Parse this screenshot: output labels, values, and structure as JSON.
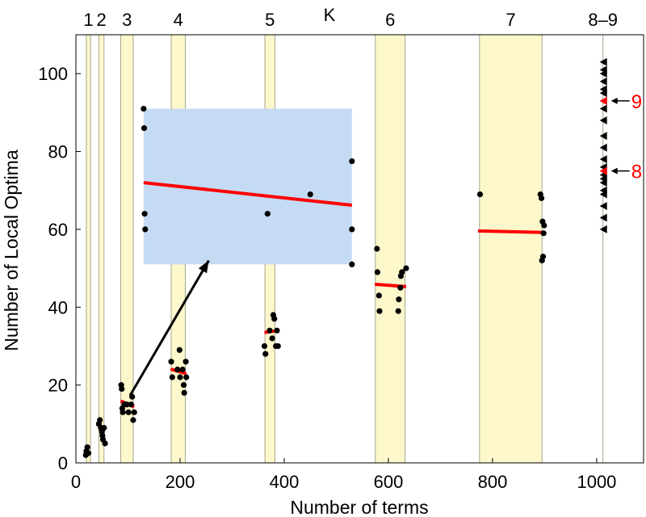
{
  "chart_data": {
    "type": "scatter",
    "xlabel": "Number of terms",
    "ylabel": "Number of Local Optima",
    "top_axis_label": "K",
    "xlim": [
      0,
      1090
    ],
    "ylim": [
      0,
      110
    ],
    "x_ticks": [
      0,
      200,
      400,
      600,
      800,
      1000
    ],
    "y_ticks": [
      0,
      20,
      40,
      60,
      80,
      100
    ],
    "grid": false,
    "colors": {
      "band_fill": "#fcf8cc",
      "band_edge": "#a6a68a",
      "inset_fill": "#c5dbf4",
      "regression": "#ff0000",
      "points": "#000000",
      "highlight": "#ff0000"
    },
    "k_bands": [
      {
        "label": "1",
        "x0": 20,
        "x1": 28
      },
      {
        "label": "2",
        "x0": 44,
        "x1": 54
      },
      {
        "label": "3",
        "x0": 86,
        "x1": 110
      },
      {
        "label": "4",
        "x0": 183,
        "x1": 210
      },
      {
        "label": "5",
        "x0": 363,
        "x1": 382
      },
      {
        "label": "6",
        "x0": 575,
        "x1": 632
      },
      {
        "label": "7",
        "x0": 775,
        "x1": 895
      },
      {
        "label": "8–9",
        "x0": 1012,
        "x1": 1012
      }
    ],
    "points": [
      [
        19,
        2
      ],
      [
        20,
        3
      ],
      [
        22,
        4
      ],
      [
        24,
        2.5
      ],
      [
        44,
        10
      ],
      [
        46,
        11
      ],
      [
        48,
        9
      ],
      [
        50,
        8
      ],
      [
        51,
        7
      ],
      [
        52,
        6
      ],
      [
        54,
        9
      ],
      [
        56,
        5
      ],
      [
        87,
        20
      ],
      [
        88,
        19
      ],
      [
        89,
        14
      ],
      [
        90,
        13
      ],
      [
        93,
        15
      ],
      [
        98,
        15
      ],
      [
        101,
        13
      ],
      [
        106,
        15
      ],
      [
        108,
        17
      ],
      [
        110,
        11
      ],
      [
        112,
        13
      ],
      [
        183,
        26
      ],
      [
        185,
        22
      ],
      [
        195,
        24
      ],
      [
        199,
        29
      ],
      [
        200,
        22
      ],
      [
        205,
        24
      ],
      [
        207,
        20
      ],
      [
        208,
        18
      ],
      [
        211,
        26
      ],
      [
        212,
        22
      ],
      [
        362,
        30
      ],
      [
        364,
        28
      ],
      [
        372,
        34
      ],
      [
        377,
        32
      ],
      [
        379,
        38
      ],
      [
        381,
        37
      ],
      [
        384,
        30
      ],
      [
        386,
        34
      ],
      [
        388,
        30
      ],
      [
        578,
        55
      ],
      [
        579,
        49
      ],
      [
        582,
        43
      ],
      [
        583,
        39
      ],
      [
        619,
        39
      ],
      [
        620,
        42
      ],
      [
        624,
        48
      ],
      [
        626,
        49
      ],
      [
        634,
        50
      ],
      [
        623,
        45
      ],
      [
        776,
        69
      ],
      [
        892,
        69
      ],
      [
        894,
        68
      ],
      [
        896,
        62
      ],
      [
        898,
        59
      ],
      [
        899,
        61
      ],
      [
        897,
        53
      ],
      [
        895,
        52
      ]
    ],
    "regression_lines": [
      {
        "x": [
          18,
          26
        ],
        "y": [
          4.3,
          4.1
        ]
      },
      {
        "x": [
          44,
          56
        ],
        "y": [
          8.8,
          8.2
        ]
      },
      {
        "x": [
          86,
          112
        ],
        "y": [
          15.9,
          14.4
        ]
      },
      {
        "x": [
          182,
          212
        ],
        "y": [
          24.1,
          22.9
        ]
      },
      {
        "x": [
          362,
          388
        ],
        "y": [
          33.5,
          34.0
        ]
      },
      {
        "x": [
          574,
          634
        ],
        "y": [
          45.9,
          45.3
        ]
      },
      {
        "x": [
          772,
          898
        ],
        "y": [
          59.6,
          59.2
        ]
      }
    ],
    "triangles": [
      103,
      101,
      100,
      98,
      96,
      95,
      93,
      91,
      88,
      84,
      81,
      78,
      76,
      74,
      73,
      72,
      70,
      69,
      66,
      63,
      60
    ],
    "triangle_x": 1012,
    "highlighted": [
      {
        "label": "9",
        "y": 93
      },
      {
        "label": "8",
        "y": 75
      }
    ],
    "inset": {
      "region": {
        "x0": 130,
        "x1": 530,
        "y0": 51,
        "y1": 91
      },
      "points": [
        [
          130,
          91
        ],
        [
          131,
          86
        ],
        [
          132,
          64
        ],
        [
          133,
          60
        ],
        [
          368,
          64
        ],
        [
          450,
          69
        ],
        [
          530,
          77.5
        ],
        [
          530,
          60
        ],
        [
          530,
          51
        ]
      ],
      "line": {
        "x": [
          130,
          530
        ],
        "y": [
          72,
          66.2
        ]
      },
      "arrow_from": [
        104,
        17.3
      ],
      "arrow_to": [
        255,
        52
      ]
    }
  }
}
